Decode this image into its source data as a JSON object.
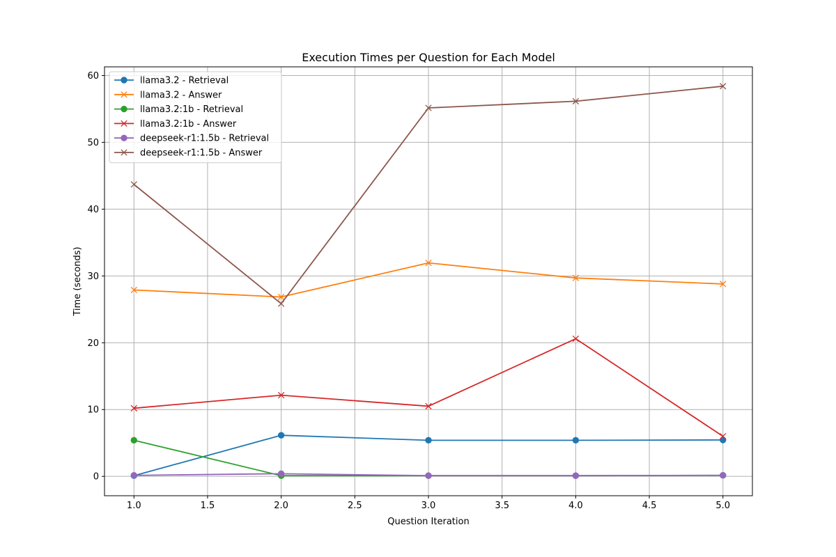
{
  "chart_data": {
    "type": "line",
    "title": "Execution Times per Question for Each Model",
    "xlabel": "Question Iteration",
    "ylabel": "Time (seconds)",
    "xlim": [
      0.8,
      5.2
    ],
    "ylim": [
      -2.9,
      61.3
    ],
    "xticks": [
      1.0,
      1.5,
      2.0,
      2.5,
      3.0,
      3.5,
      4.0,
      4.5,
      5.0
    ],
    "xtick_labels": [
      "1.0",
      "1.5",
      "2.0",
      "2.5",
      "3.0",
      "3.5",
      "4.0",
      "4.5",
      "5.0"
    ],
    "yticks": [
      0,
      10,
      20,
      30,
      40,
      50,
      60
    ],
    "ytick_labels": [
      "0",
      "10",
      "20",
      "30",
      "40",
      "50",
      "60"
    ],
    "grid": true,
    "legend_position": "upper-left",
    "x": [
      1,
      2,
      3,
      4,
      5
    ],
    "series": [
      {
        "name": "llama3.2 - Retrieval",
        "color": "#1f77b4",
        "marker": "circle",
        "values": [
          0.1,
          6.15,
          5.4,
          5.4,
          5.45
        ]
      },
      {
        "name": "llama3.2 - Answer",
        "color": "#ff7f0e",
        "marker": "x",
        "values": [
          27.9,
          26.85,
          31.95,
          29.7,
          28.8
        ]
      },
      {
        "name": "llama3.2:1b - Retrieval",
        "color": "#2ca02c",
        "marker": "circle",
        "values": [
          5.4,
          0.1,
          0.1,
          0.1,
          0.15
        ]
      },
      {
        "name": "llama3.2:1b - Answer",
        "color": "#d62728",
        "marker": "x",
        "values": [
          10.2,
          12.15,
          10.5,
          20.6,
          6.0
        ]
      },
      {
        "name": "deepseek-r1:1.5b - Retrieval",
        "color": "#9467bd",
        "marker": "circle",
        "values": [
          0.15,
          0.4,
          0.1,
          0.1,
          0.15
        ]
      },
      {
        "name": "deepseek-r1:1.5b - Answer",
        "color": "#8c564b",
        "marker": "x",
        "values": [
          43.7,
          25.85,
          55.15,
          56.15,
          58.4
        ]
      }
    ]
  }
}
